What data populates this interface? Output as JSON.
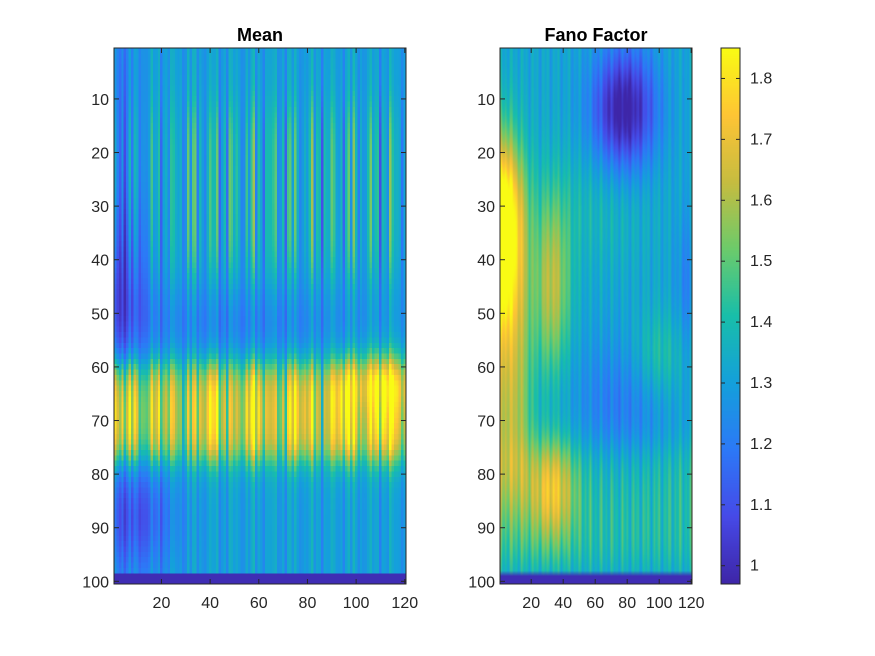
{
  "chart_data": [
    {
      "type": "heatmap",
      "title": "Mean",
      "xlabel": "",
      "ylabel": "",
      "xlim": [
        0.5,
        120.5
      ],
      "ylim": [
        0.5,
        100.5
      ],
      "y_direction": "reverse",
      "xticks": [
        20,
        40,
        60,
        80,
        100,
        120
      ],
      "yticks": [
        10,
        20,
        30,
        40,
        50,
        60,
        70,
        80,
        90,
        100
      ],
      "colorbar": false,
      "colormap": "parula",
      "clim": [
        0.97,
        1.85
      ],
      "description_values": {
        "background": 1.3,
        "hot_band_rows": [
          60,
          78
        ],
        "hot_band_peak": 1.7,
        "low_left_rows": [
          35,
          55
        ],
        "low_bottom_left_rows": [
          80,
          98
        ],
        "last_row_value": 1.0
      }
    },
    {
      "type": "heatmap",
      "title": "Fano Factor",
      "xlabel": "",
      "ylabel": "",
      "xlim": [
        0.5,
        120.5
      ],
      "ylim": [
        0.5,
        100.5
      ],
      "y_direction": "reverse",
      "xticks": [
        20,
        40,
        60,
        80,
        100,
        120
      ],
      "yticks": [
        10,
        20,
        30,
        40,
        50,
        60,
        70,
        80,
        90,
        100
      ],
      "colorbar": true,
      "colorbar_ticks": [
        1,
        1.1,
        1.2,
        1.3,
        1.4,
        1.5,
        1.6,
        1.7,
        1.8
      ],
      "colormap": "parula",
      "clim": [
        0.97,
        1.85
      ],
      "description_values": {
        "hot_left_columns": [
          1,
          20
        ],
        "hot_peak": 1.85,
        "cold_spot_center": [
          78,
          12
        ],
        "cold_spot_value": 1.0,
        "last_row_value": 1.0
      }
    }
  ]
}
